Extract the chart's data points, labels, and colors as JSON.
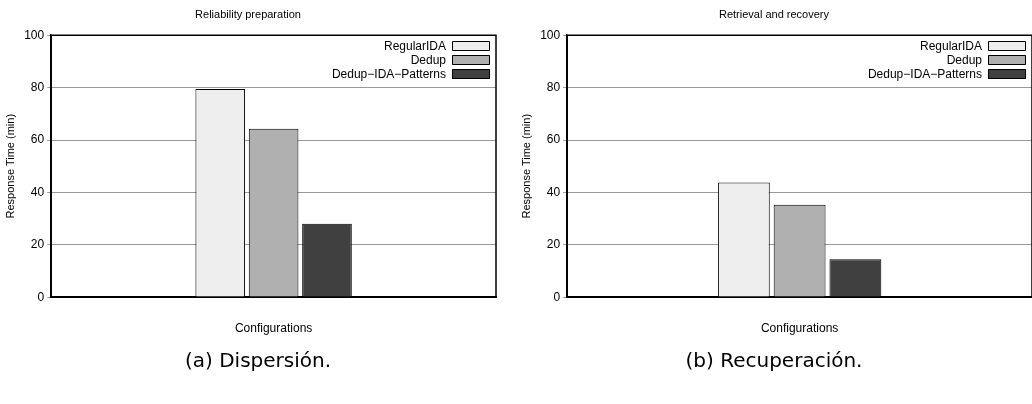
{
  "chart_data": [
    {
      "type": "bar",
      "title": "Reliability preparation",
      "xlabel": "Configurations",
      "ylabel": "Response Time (min)",
      "categories": [
        null
      ],
      "series": [
        {
          "name": "RegularIDA",
          "color": "#eeeeee",
          "values": [
            79.5
          ]
        },
        {
          "name": "Dedup",
          "color": "#b0b0b0",
          "values": [
            64.3
          ]
        },
        {
          "name": "Dedup−IDA−Patterns",
          "color": "#404040",
          "values": [
            28
          ]
        }
      ],
      "ylim": [
        0,
        100
      ],
      "yticks": [
        0,
        20,
        40,
        60,
        80,
        100
      ],
      "grid": "y",
      "legend": "top right",
      "annotations": [
        "(a) Dispersión."
      ]
    },
    {
      "type": "bar",
      "title": "Retrieval and recovery",
      "xlabel": "Configurations",
      "ylabel": "Response Time (min)",
      "categories": [
        null
      ],
      "series": [
        {
          "name": "RegularIDA",
          "color": "#eeeeee",
          "values": [
            43.8
          ]
        },
        {
          "name": "Dedup",
          "color": "#b0b0b0",
          "values": [
            35.3
          ]
        },
        {
          "name": "Dedup−IDA−Patterns",
          "color": "#404040",
          "values": [
            14.5
          ]
        }
      ],
      "ylim": [
        0,
        100
      ],
      "yticks": [
        0,
        20,
        40,
        60,
        80,
        100
      ],
      "grid": "y",
      "legend": "top right",
      "annotations": [
        "(b) Recuperación."
      ]
    }
  ]
}
